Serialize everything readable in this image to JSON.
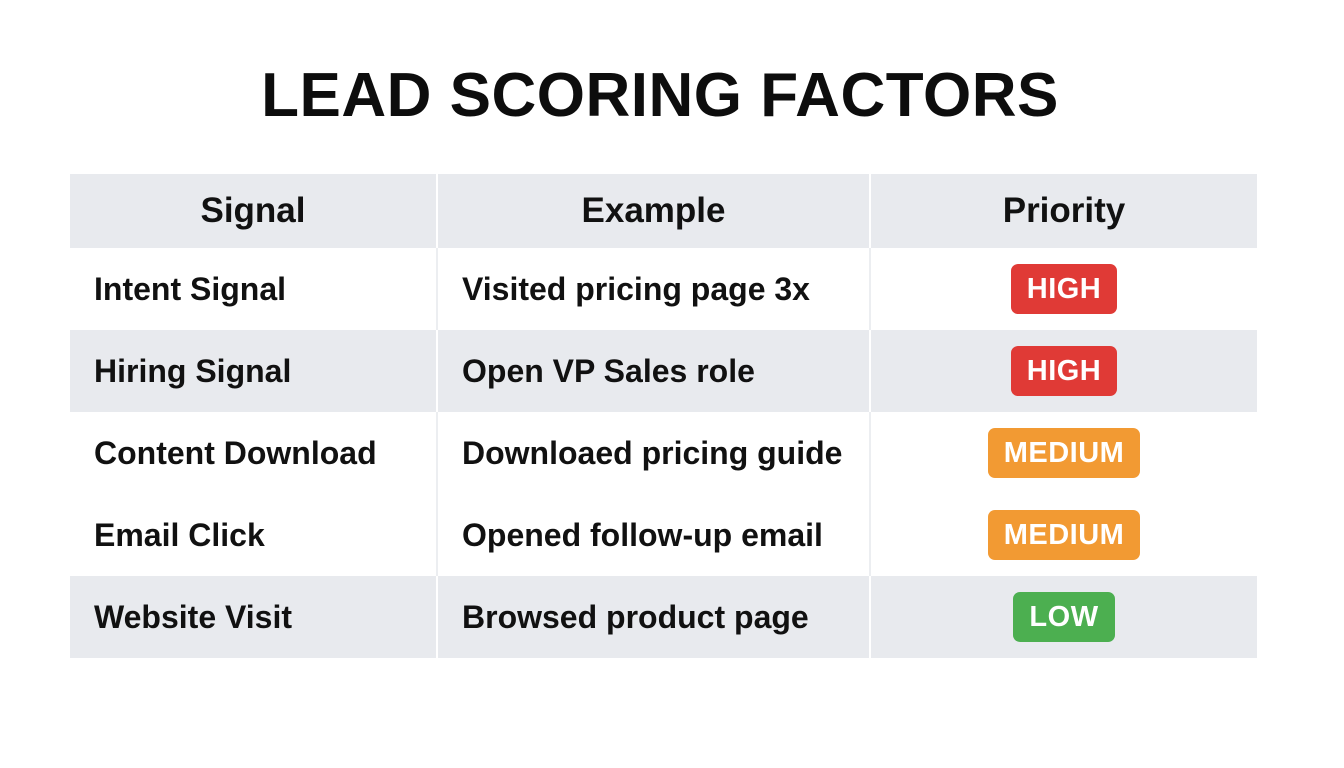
{
  "title": "LEAD SCORING FACTORS",
  "table": {
    "headers": [
      "Signal",
      "Example",
      "Priority"
    ],
    "rows": [
      {
        "signal": "Intent Signal",
        "example": "Visited pricing page 3x",
        "priority": "HIGH"
      },
      {
        "signal": "Hiring Signal",
        "example": "Open VP Sales role",
        "priority": "HIGH"
      },
      {
        "signal": "Content Download",
        "example": "Downloaed pricing guide",
        "priority": "MEDIUM"
      },
      {
        "signal": "Email Click",
        "example": "Opened follow-up email",
        "priority": "MEDIUM"
      },
      {
        "signal": "Website Visit",
        "example": "Browsed product page",
        "priority": "LOW"
      }
    ]
  },
  "priority_colors": {
    "HIGH": "#e03a36",
    "MEDIUM": "#f29a33",
    "LOW": "#4caf50"
  }
}
